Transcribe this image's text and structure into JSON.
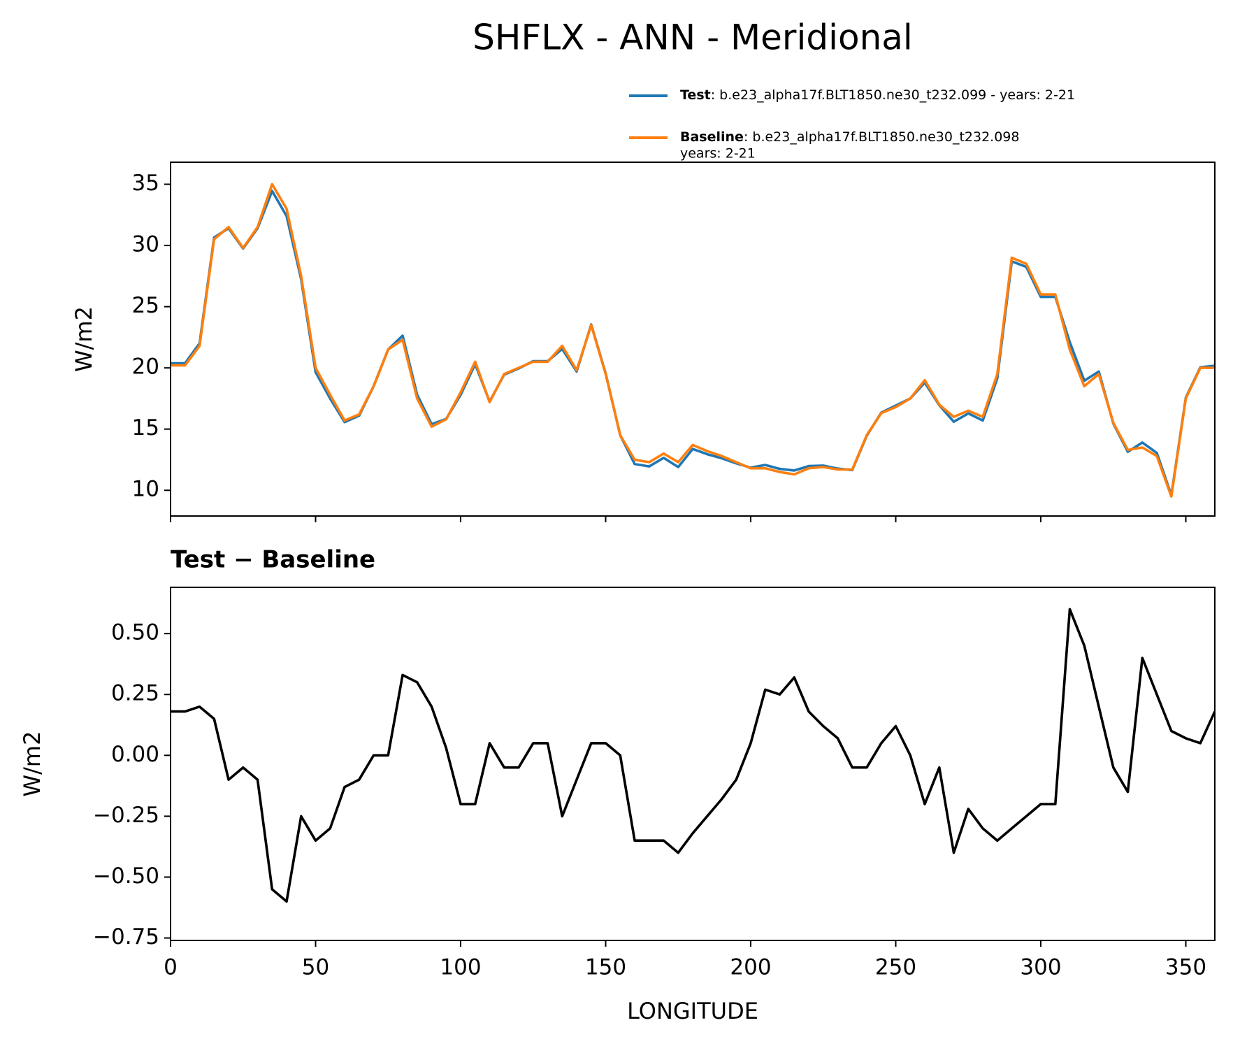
{
  "chart_data": [
    {
      "type": "line",
      "title": "SHFLX - ANN - Meridional",
      "ylabel": "W/m2",
      "x": [
        0,
        5,
        10,
        15,
        20,
        25,
        30,
        35,
        40,
        45,
        50,
        55,
        60,
        65,
        70,
        75,
        80,
        85,
        90,
        95,
        100,
        105,
        110,
        115,
        120,
        125,
        130,
        135,
        140,
        145,
        150,
        155,
        160,
        165,
        170,
        175,
        180,
        185,
        190,
        195,
        200,
        205,
        210,
        215,
        220,
        225,
        230,
        235,
        240,
        245,
        250,
        255,
        260,
        265,
        270,
        275,
        280,
        285,
        290,
        295,
        300,
        305,
        310,
        315,
        320,
        325,
        330,
        335,
        340,
        345,
        350,
        355,
        360
      ],
      "series": [
        {
          "name": "Test",
          "description": [
            ": b.e23_alpha17f.BLT1850.ne30_t232.099 - years: 2-21"
          ],
          "color": "#1f77b4",
          "values": [
            20.38,
            20.38,
            22.0,
            30.65,
            31.4,
            29.75,
            31.4,
            34.45,
            32.4,
            27.25,
            19.65,
            17.5,
            15.57,
            16.1,
            18.5,
            21.5,
            22.63,
            17.8,
            15.4,
            15.83,
            17.8,
            20.3,
            17.25,
            19.45,
            19.95,
            20.55,
            20.55,
            21.55,
            19.7,
            23.55,
            19.55,
            14.5,
            12.15,
            11.95,
            12.65,
            11.9,
            13.38,
            12.95,
            12.62,
            12.2,
            11.85,
            12.07,
            11.75,
            11.62,
            11.98,
            12.02,
            11.77,
            11.65,
            14.45,
            16.35,
            16.92,
            17.5,
            18.8,
            16.95,
            15.6,
            16.28,
            15.7,
            19.15,
            28.7,
            28.25,
            25.8,
            25.8,
            22.1,
            18.95,
            19.7,
            15.45,
            13.15,
            13.9,
            13.05,
            9.6,
            17.57,
            20.05,
            20.18
          ]
        },
        {
          "name": "Baseline",
          "description": [
            ": b.e23_alpha17f.BLT1850.ne30_t232.098",
            "years: 2-21"
          ],
          "color": "#ff7f0e",
          "values": [
            20.2,
            20.2,
            21.8,
            30.5,
            31.5,
            29.8,
            31.5,
            35,
            33,
            27.5,
            20,
            17.8,
            15.7,
            16.2,
            18.5,
            21.5,
            22.3,
            17.5,
            15.2,
            15.8,
            18,
            20.5,
            17.2,
            19.5,
            20,
            20.5,
            20.5,
            21.8,
            19.8,
            23.5,
            19.5,
            14.5,
            12.5,
            12.3,
            13,
            12.3,
            13.7,
            13.2,
            12.8,
            12.3,
            11.8,
            11.8,
            11.5,
            11.3,
            11.8,
            11.9,
            11.7,
            11.7,
            14.5,
            16.3,
            16.8,
            17.5,
            19,
            17,
            16,
            16.5,
            16,
            19.5,
            29,
            28.5,
            26,
            26,
            21.5,
            18.5,
            19.5,
            15.5,
            13.3,
            13.5,
            12.8,
            9.5,
            17.5,
            20,
            20
          ]
        }
      ],
      "xlim": [
        0,
        360
      ],
      "xticks": [
        0,
        50,
        100,
        150,
        200,
        250,
        300,
        350
      ],
      "ylim": [
        7.9,
        36.8
      ],
      "yticks": [
        10,
        15,
        20,
        25,
        30,
        35
      ]
    },
    {
      "type": "line",
      "title": "Test − Baseline",
      "ylabel": "W/m2",
      "xlabel": "LONGITUDE",
      "x": [
        0,
        5,
        10,
        15,
        20,
        25,
        30,
        35,
        40,
        45,
        50,
        55,
        60,
        65,
        70,
        75,
        80,
        85,
        90,
        95,
        100,
        105,
        110,
        115,
        120,
        125,
        130,
        135,
        140,
        145,
        150,
        155,
        160,
        165,
        170,
        175,
        180,
        185,
        190,
        195,
        200,
        205,
        210,
        215,
        220,
        225,
        230,
        235,
        240,
        245,
        250,
        255,
        260,
        265,
        270,
        275,
        280,
        285,
        290,
        295,
        300,
        305,
        310,
        315,
        320,
        325,
        330,
        335,
        340,
        345,
        350,
        355,
        360
      ],
      "series": [
        {
          "color": "#000000",
          "values": [
            0.18,
            0.18,
            0.2,
            0.15,
            -0.1,
            -0.05,
            -0.1,
            -0.55,
            -0.6,
            -0.25,
            -0.35,
            -0.3,
            -0.13,
            -0.1,
            0.0,
            0.0,
            0.33,
            0.3,
            0.2,
            0.03,
            -0.2,
            -0.2,
            0.05,
            -0.05,
            -0.05,
            0.05,
            0.05,
            -0.25,
            -0.1,
            0.05,
            0.05,
            0.0,
            -0.35,
            -0.35,
            -0.35,
            -0.4,
            -0.32,
            -0.25,
            -0.18,
            -0.1,
            0.05,
            0.27,
            0.25,
            0.32,
            0.18,
            0.12,
            0.07,
            -0.05,
            -0.05,
            0.05,
            0.12,
            0.0,
            -0.2,
            -0.05,
            -0.4,
            -0.22,
            -0.3,
            -0.35,
            -0.3,
            -0.25,
            -0.2,
            -0.2,
            0.6,
            0.45,
            0.2,
            -0.05,
            -0.15,
            0.4,
            0.25,
            0.1,
            0.07,
            0.05,
            0.18
          ]
        }
      ],
      "xlim": [
        0,
        360
      ],
      "xticks": [
        0,
        50,
        100,
        150,
        200,
        250,
        300,
        350
      ],
      "ylim": [
        -0.76,
        0.69
      ],
      "yticks": [
        {
          "value": -0.75,
          "label": "−0.75"
        },
        {
          "value": -0.5,
          "label": "−0.50"
        },
        {
          "value": -0.25,
          "label": "−0.25"
        },
        {
          "value": 0,
          "label": "0.00"
        },
        {
          "value": 0.25,
          "label": "0.25"
        },
        {
          "value": 0.5,
          "label": "0.50"
        }
      ]
    }
  ]
}
